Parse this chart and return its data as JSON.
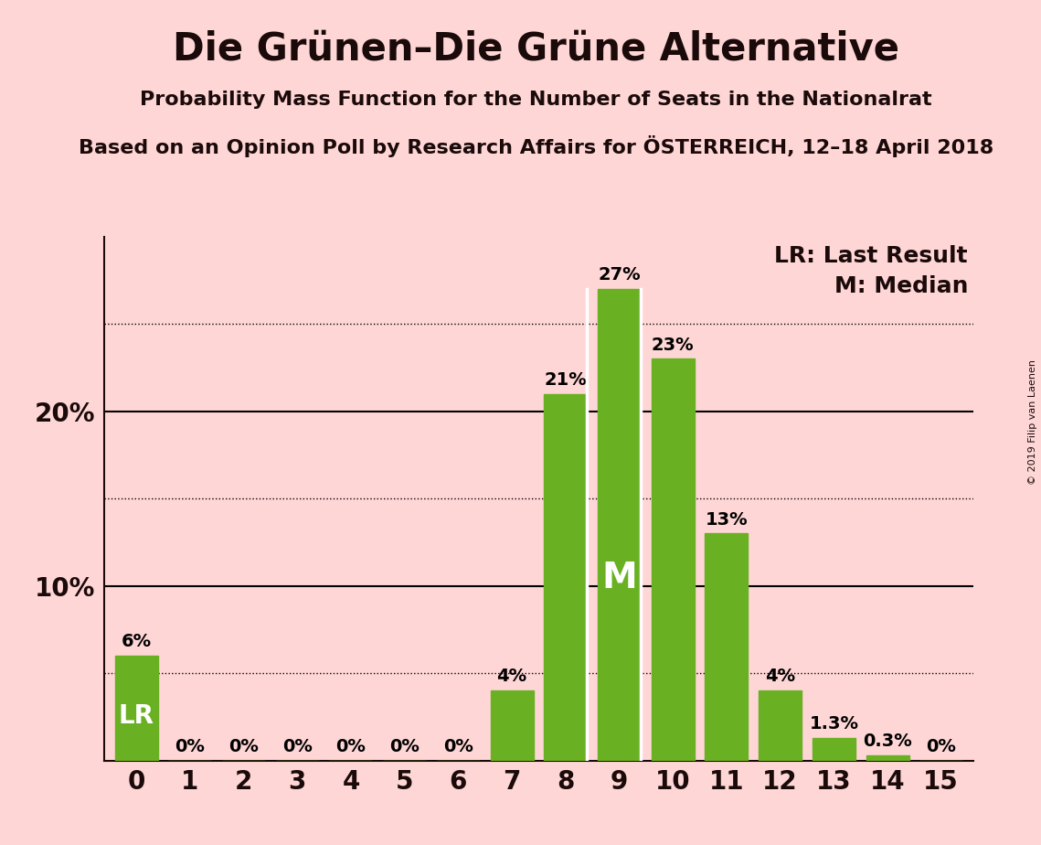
{
  "title": "Die Grünen–Die Grüne Alternative",
  "subtitle1": "Probability Mass Function for the Number of Seats in the Nationalrat",
  "subtitle2": "Based on an Opinion Poll by Research Affairs for ÖSTERREICH, 12–18 April 2018",
  "copyright": "© 2019 Filip van Laenen",
  "categories": [
    0,
    1,
    2,
    3,
    4,
    5,
    6,
    7,
    8,
    9,
    10,
    11,
    12,
    13,
    14,
    15
  ],
  "values": [
    6,
    0,
    0,
    0,
    0,
    0,
    0,
    4,
    21,
    27,
    23,
    13,
    4,
    1.3,
    0.3,
    0
  ],
  "bar_color": "#6ab023",
  "background_color": "#ffd6d6",
  "ylim": [
    0,
    30
  ],
  "last_result_seat": 0,
  "median_seat": 9,
  "lr_label": "LR",
  "median_label": "M",
  "legend_lr": "LR: Last Result",
  "legend_m": "M: Median",
  "dotted_line_levels": [
    5,
    15,
    25
  ],
  "solid_line_levels": [
    10,
    20
  ],
  "title_fontsize": 30,
  "subtitle_fontsize": 16,
  "bar_label_fontsize": 14,
  "axis_tick_fontsize": 20,
  "legend_fontsize": 18
}
